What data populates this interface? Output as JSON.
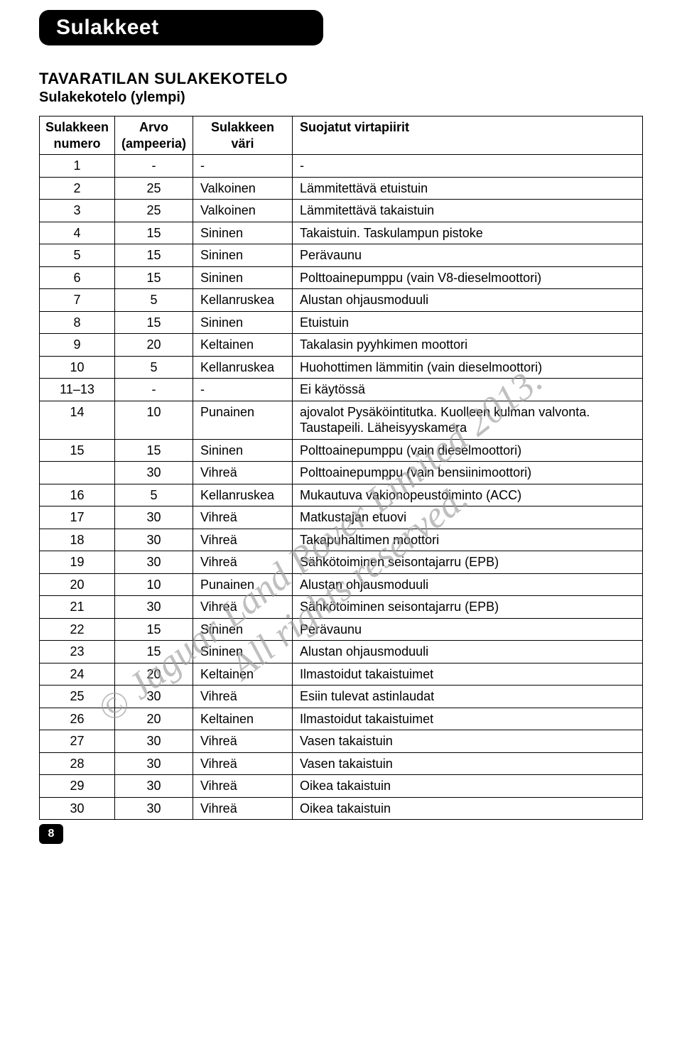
{
  "page": {
    "title_bar": "Sulakkeet",
    "section_title": "TAVARATILAN SULAKEKOTELO",
    "section_subtitle": "Sulakekotelo (ylempi)",
    "page_number": "8",
    "watermark_line1": "© Jaguar Land Rover Limited 2013.",
    "watermark_line2": "All rights reserved."
  },
  "table": {
    "headers": {
      "col0_line1": "Sulakkeen",
      "col0_line2": "numero",
      "col1_line1": "Arvo",
      "col1_line2": "(ampeeria)",
      "col2_line1": "Sulakkeen",
      "col2_line2": "väri",
      "col3": "Suojatut virtapiirit"
    },
    "rows": [
      {
        "num": "1",
        "val": "-",
        "color": "-",
        "desc": "-"
      },
      {
        "num": "2",
        "val": "25",
        "color": "Valkoinen",
        "desc": "Lämmitettävä etuistuin"
      },
      {
        "num": "3",
        "val": "25",
        "color": "Valkoinen",
        "desc": "Lämmitettävä takaistuin"
      },
      {
        "num": "4",
        "val": "15",
        "color": "Sininen",
        "desc": "Takaistuin. Taskulampun pistoke"
      },
      {
        "num": "5",
        "val": "15",
        "color": "Sininen",
        "desc": "Perävaunu"
      },
      {
        "num": "6",
        "val": "15",
        "color": "Sininen",
        "desc": "Polttoainepumppu (vain V8-dieselmoottori)"
      },
      {
        "num": "7",
        "val": "5",
        "color": "Kellanruskea",
        "desc": "Alustan ohjausmoduuli"
      },
      {
        "num": "8",
        "val": "15",
        "color": "Sininen",
        "desc": "Etuistuin"
      },
      {
        "num": "9",
        "val": "20",
        "color": "Keltainen",
        "desc": "Takalasin pyyhkimen moottori"
      },
      {
        "num": "10",
        "val": "5",
        "color": "Kellanruskea",
        "desc": "Huohottimen lämmitin (vain dieselmoottori)"
      },
      {
        "num": "11–13",
        "val": "-",
        "color": "-",
        "desc": "Ei käytössä"
      },
      {
        "num": "14",
        "val": "10",
        "color": "Punainen",
        "desc": "ajovalot Pysäköintitutka. Kuolleen kulman valvonta. Taustapeili. Läheisyyskamera"
      },
      {
        "num": "15",
        "val": "15",
        "color": "Sininen",
        "desc": "Polttoainepumppu (vain dieselmoottori)"
      },
      {
        "num": "",
        "val": "30",
        "color": "Vihreä",
        "desc": "Polttoainepumppu (vain bensiinimoottori)"
      },
      {
        "num": "16",
        "val": "5",
        "color": "Kellanruskea",
        "desc": "Mukautuva vakionopeustoiminto (ACC)"
      },
      {
        "num": "17",
        "val": "30",
        "color": "Vihreä",
        "desc": "Matkustajan etuovi"
      },
      {
        "num": "18",
        "val": "30",
        "color": "Vihreä",
        "desc": "Takapuhaltimen moottori"
      },
      {
        "num": "19",
        "val": "30",
        "color": "Vihreä",
        "desc": "Sähkötoiminen seisontajarru (EPB)"
      },
      {
        "num": "20",
        "val": "10",
        "color": "Punainen",
        "desc": "Alustan ohjausmoduuli"
      },
      {
        "num": "21",
        "val": "30",
        "color": "Vihreä",
        "desc": "Sähkötoiminen seisontajarru (EPB)"
      },
      {
        "num": "22",
        "val": "15",
        "color": "Sininen",
        "desc": "Perävaunu"
      },
      {
        "num": "23",
        "val": "15",
        "color": "Sininen",
        "desc": "Alustan ohjausmoduuli"
      },
      {
        "num": "24",
        "val": "20",
        "color": "Keltainen",
        "desc": "Ilmastoidut takaistuimet"
      },
      {
        "num": "25",
        "val": "30",
        "color": "Vihreä",
        "desc": "Esiin tulevat astinlaudat"
      },
      {
        "num": "26",
        "val": "20",
        "color": "Keltainen",
        "desc": "Ilmastoidut takaistuimet"
      },
      {
        "num": "27",
        "val": "30",
        "color": "Vihreä",
        "desc": "Vasen takaistuin"
      },
      {
        "num": "28",
        "val": "30",
        "color": "Vihreä",
        "desc": "Vasen takaistuin"
      },
      {
        "num": "29",
        "val": "30",
        "color": "Vihreä",
        "desc": "Oikea takaistuin"
      },
      {
        "num": "30",
        "val": "30",
        "color": "Vihreä",
        "desc": "Oikea takaistuin"
      }
    ]
  },
  "style": {
    "body_bg": "#ffffff",
    "bar_bg": "#000000",
    "bar_fg": "#ffffff",
    "border_color": "#000000",
    "watermark_color": "#9d9d9d",
    "font_main": "Arial, Helvetica, sans-serif"
  }
}
